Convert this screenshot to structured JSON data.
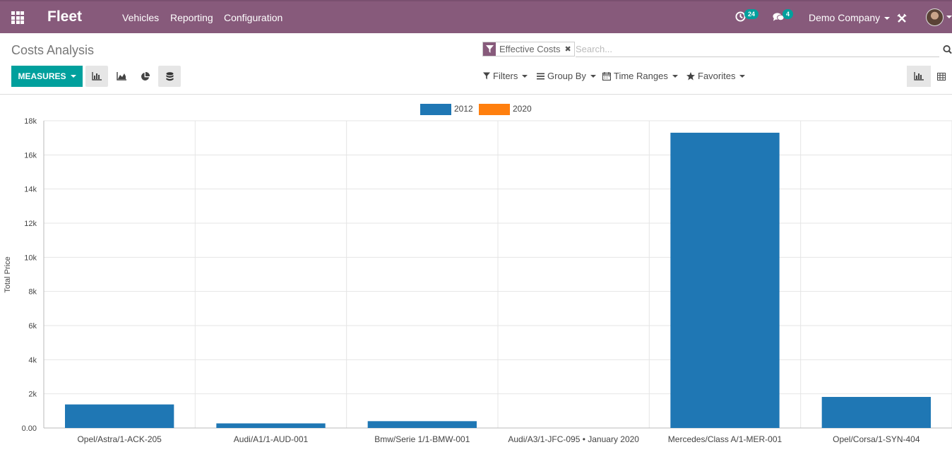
{
  "navbar": {
    "brand": "Fleet",
    "menu": [
      "Vehicles",
      "Reporting",
      "Configuration"
    ],
    "activity_count": "24",
    "message_count": "4",
    "company": "Demo Company",
    "bg_color": "#875a7b"
  },
  "control_panel": {
    "title": "Costs Analysis",
    "facet_label": "Effective Costs",
    "search_placeholder": "Search...",
    "measures_label": "MEASURES",
    "filters": [
      "Filters",
      "Group By",
      "Time Ranges",
      "Favorites"
    ]
  },
  "icons": {
    "apps": "apps-grid-icon",
    "activity": "clock-icon",
    "messages": "chat-icon",
    "debug": "bug-icon",
    "search": "search-icon",
    "bar_chart": "bar-chart-icon",
    "line_chart": "line-chart-icon",
    "pie_chart": "pie-chart-icon",
    "stacked": "database-icon",
    "graph_view": "bar-chart-icon",
    "pivot_view": "table-icon"
  },
  "chart_data": {
    "type": "bar",
    "categories": [
      "Opel/Astra/1-ACK-205",
      "Audi/A1/1-AUD-001",
      "Bmw/Serie 1/1-BMW-001",
      "Audi/A3/1-JFC-095 • January 2020",
      "Mercedes/Class A/1-MER-001",
      "Opel/Corsa/1-SYN-404"
    ],
    "series": [
      {
        "name": "2012",
        "color": "#1f77b4",
        "values": [
          1380,
          270,
          400,
          0,
          17300,
          1820
        ]
      },
      {
        "name": "2020",
        "color": "#ff7f0e",
        "values": [
          0,
          0,
          0,
          0,
          0,
          0
        ]
      }
    ],
    "ylabel": "Total Price",
    "ylim": [
      0,
      18000
    ],
    "yticks": [
      "0.00",
      "2k",
      "4k",
      "6k",
      "8k",
      "10k",
      "12k",
      "14k",
      "16k",
      "18k"
    ],
    "grid": true,
    "legend": "top-center"
  }
}
